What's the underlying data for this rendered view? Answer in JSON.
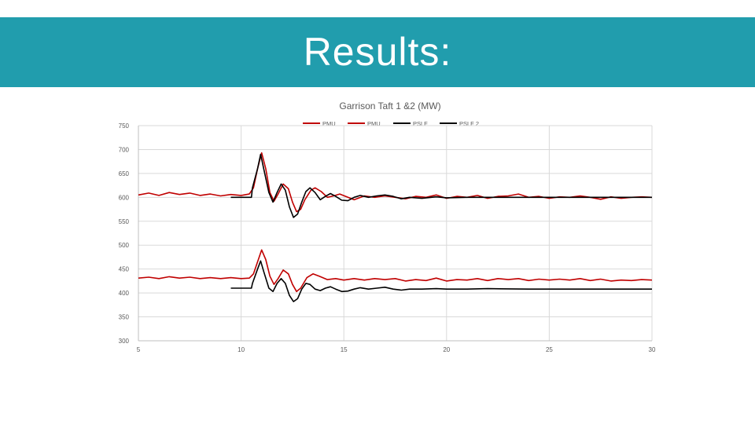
{
  "slide": {
    "title": "Results:",
    "header_color": "#219dad"
  },
  "chart_data": {
    "type": "line",
    "title": "Garrison Taft 1 &2 (MW)",
    "xlim": [
      5,
      30
    ],
    "ylim": [
      300,
      750
    ],
    "x_ticks": [
      "5",
      "10",
      "15",
      "20",
      "25",
      "30"
    ],
    "y_ticks": [
      "300",
      "350",
      "400",
      "450",
      "500",
      "550",
      "600",
      "650",
      "700",
      "750"
    ],
    "grid": true,
    "legend_position": "top",
    "series": [
      {
        "name": "PMU",
        "color": "#c00000",
        "points": [
          [
            5,
            605
          ],
          [
            5.5,
            609
          ],
          [
            6,
            604
          ],
          [
            6.5,
            610
          ],
          [
            7,
            606
          ],
          [
            7.5,
            609
          ],
          [
            8,
            604
          ],
          [
            8.5,
            607
          ],
          [
            9,
            603
          ],
          [
            9.5,
            606
          ],
          [
            10,
            604
          ],
          [
            10.4,
            607
          ],
          [
            10.6,
            620
          ],
          [
            10.8,
            660
          ],
          [
            11,
            693
          ],
          [
            11.2,
            660
          ],
          [
            11.4,
            610
          ],
          [
            11.6,
            592
          ],
          [
            11.8,
            607
          ],
          [
            12.05,
            628
          ],
          [
            12.3,
            618
          ],
          [
            12.5,
            590
          ],
          [
            12.7,
            570
          ],
          [
            12.9,
            575
          ],
          [
            13.1,
            595
          ],
          [
            13.4,
            615
          ],
          [
            13.6,
            620
          ],
          [
            13.9,
            612
          ],
          [
            14.2,
            600
          ],
          [
            14.5,
            603
          ],
          [
            14.8,
            607
          ],
          [
            15.2,
            600
          ],
          [
            15.5,
            595
          ],
          [
            16,
            603
          ],
          [
            16.5,
            600
          ],
          [
            17,
            603
          ],
          [
            17.5,
            600
          ],
          [
            18,
            597
          ],
          [
            18.5,
            602
          ],
          [
            19,
            600
          ],
          [
            19.5,
            605
          ],
          [
            20,
            598
          ],
          [
            20.5,
            602
          ],
          [
            21,
            600
          ],
          [
            21.5,
            604
          ],
          [
            22,
            598
          ],
          [
            22.5,
            602
          ],
          [
            23,
            603
          ],
          [
            23.5,
            607
          ],
          [
            24,
            600
          ],
          [
            24.5,
            602
          ],
          [
            25,
            598
          ],
          [
            25.5,
            601
          ],
          [
            26,
            600
          ],
          [
            26.5,
            603
          ],
          [
            27,
            600
          ],
          [
            27.5,
            596
          ],
          [
            28,
            601
          ],
          [
            28.5,
            598
          ],
          [
            29,
            600
          ],
          [
            29.5,
            601
          ],
          [
            30,
            600
          ]
        ]
      },
      {
        "name": "PMU",
        "color": "#c00000",
        "points": [
          [
            5,
            431
          ],
          [
            5.5,
            433
          ],
          [
            6,
            430
          ],
          [
            6.5,
            434
          ],
          [
            7,
            431
          ],
          [
            7.5,
            433
          ],
          [
            8,
            430
          ],
          [
            8.5,
            432
          ],
          [
            9,
            430
          ],
          [
            9.5,
            432
          ],
          [
            10,
            430
          ],
          [
            10.4,
            431
          ],
          [
            10.6,
            440
          ],
          [
            10.8,
            465
          ],
          [
            11,
            490
          ],
          [
            11.2,
            470
          ],
          [
            11.4,
            435
          ],
          [
            11.6,
            418
          ],
          [
            11.8,
            430
          ],
          [
            12.05,
            448
          ],
          [
            12.3,
            440
          ],
          [
            12.5,
            418
          ],
          [
            12.7,
            403
          ],
          [
            12.9,
            410
          ],
          [
            13.2,
            432
          ],
          [
            13.5,
            440
          ],
          [
            13.8,
            435
          ],
          [
            14.2,
            428
          ],
          [
            14.6,
            430
          ],
          [
            15,
            427
          ],
          [
            15.5,
            430
          ],
          [
            16,
            427
          ],
          [
            16.5,
            430
          ],
          [
            17,
            428
          ],
          [
            17.5,
            430
          ],
          [
            18,
            425
          ],
          [
            18.5,
            428
          ],
          [
            19,
            426
          ],
          [
            19.5,
            431
          ],
          [
            20,
            425
          ],
          [
            20.5,
            428
          ],
          [
            21,
            427
          ],
          [
            21.5,
            430
          ],
          [
            22,
            426
          ],
          [
            22.5,
            430
          ],
          [
            23,
            428
          ],
          [
            23.5,
            430
          ],
          [
            24,
            426
          ],
          [
            24.5,
            429
          ],
          [
            25,
            427
          ],
          [
            25.5,
            429
          ],
          [
            26,
            427
          ],
          [
            26.5,
            430
          ],
          [
            27,
            426
          ],
          [
            27.5,
            429
          ],
          [
            28,
            425
          ],
          [
            28.5,
            427
          ],
          [
            29,
            426
          ],
          [
            29.5,
            428
          ],
          [
            30,
            427
          ]
        ]
      },
      {
        "name": "PSLF",
        "color": "#000000",
        "points": [
          [
            9.5,
            600
          ],
          [
            10.5,
            600
          ],
          [
            10.55,
            620
          ],
          [
            10.8,
            660
          ],
          [
            10.95,
            690
          ],
          [
            11.1,
            660
          ],
          [
            11.35,
            610
          ],
          [
            11.55,
            590
          ],
          [
            11.75,
            610
          ],
          [
            11.95,
            628
          ],
          [
            12.15,
            615
          ],
          [
            12.35,
            580
          ],
          [
            12.55,
            558
          ],
          [
            12.75,
            565
          ],
          [
            12.95,
            590
          ],
          [
            13.15,
            612
          ],
          [
            13.35,
            620
          ],
          [
            13.6,
            610
          ],
          [
            13.85,
            595
          ],
          [
            14.1,
            602
          ],
          [
            14.35,
            608
          ],
          [
            14.6,
            602
          ],
          [
            14.9,
            594
          ],
          [
            15.2,
            593
          ],
          [
            15.5,
            600
          ],
          [
            15.8,
            604
          ],
          [
            16.2,
            600
          ],
          [
            16.6,
            603
          ],
          [
            17,
            605
          ],
          [
            17.4,
            602
          ],
          [
            17.8,
            597
          ],
          [
            18.2,
            600
          ],
          [
            18.8,
            598
          ],
          [
            19.5,
            601
          ],
          [
            20,
            599
          ],
          [
            21,
            600
          ],
          [
            22,
            600
          ],
          [
            24,
            600
          ],
          [
            26,
            600
          ],
          [
            28,
            600
          ],
          [
            30,
            600
          ]
        ]
      },
      {
        "name": "PSLF 2",
        "color": "#000000",
        "points": [
          [
            9.5,
            410
          ],
          [
            10.5,
            410
          ],
          [
            10.55,
            420
          ],
          [
            10.8,
            450
          ],
          [
            10.95,
            467
          ],
          [
            11.1,
            445
          ],
          [
            11.35,
            410
          ],
          [
            11.55,
            403
          ],
          [
            11.75,
            420
          ],
          [
            11.95,
            430
          ],
          [
            12.15,
            420
          ],
          [
            12.35,
            395
          ],
          [
            12.55,
            382
          ],
          [
            12.75,
            388
          ],
          [
            12.95,
            408
          ],
          [
            13.15,
            420
          ],
          [
            13.35,
            418
          ],
          [
            13.6,
            408
          ],
          [
            13.85,
            405
          ],
          [
            14.1,
            410
          ],
          [
            14.35,
            413
          ],
          [
            14.6,
            408
          ],
          [
            14.9,
            403
          ],
          [
            15.2,
            404
          ],
          [
            15.5,
            408
          ],
          [
            15.8,
            411
          ],
          [
            16.2,
            408
          ],
          [
            16.6,
            410
          ],
          [
            17,
            412
          ],
          [
            17.4,
            408
          ],
          [
            17.8,
            406
          ],
          [
            18.2,
            408
          ],
          [
            18.8,
            408
          ],
          [
            19.5,
            409
          ],
          [
            20,
            408
          ],
          [
            21,
            408
          ],
          [
            22,
            409
          ],
          [
            24,
            408
          ],
          [
            26,
            408
          ],
          [
            28,
            408
          ],
          [
            30,
            408
          ]
        ]
      }
    ]
  }
}
